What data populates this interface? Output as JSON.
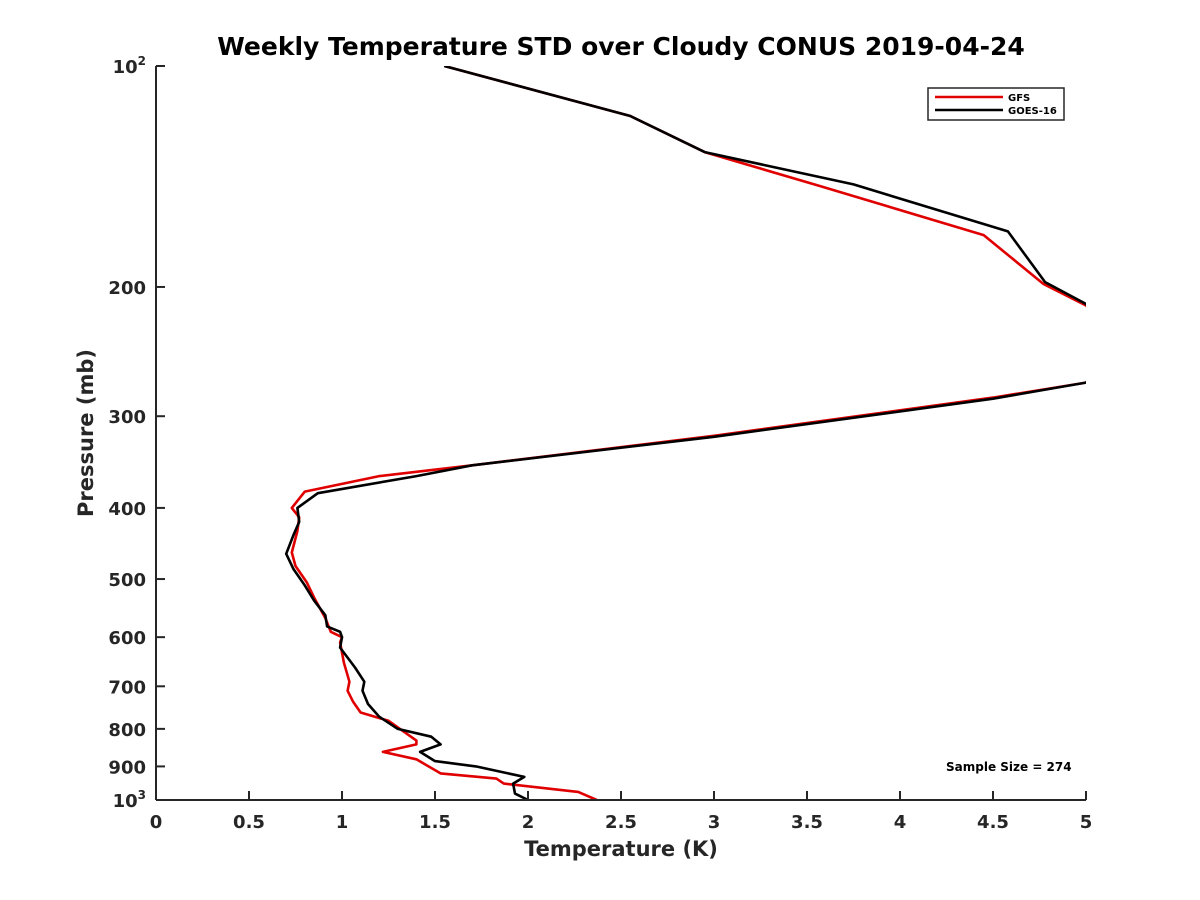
{
  "chart_data": {
    "type": "line",
    "title": "Weekly Temperature STD over Cloudy CONUS 2019-04-24",
    "xlabel": "Temperature (K)",
    "ylabel": "Pressure (mb)",
    "xlim": [
      0,
      5
    ],
    "ylim": [
      100,
      1000
    ],
    "y_scale": "log",
    "y_reversed": true,
    "grid": false,
    "legend_position": "top-right",
    "x_ticks": [
      {
        "value": 0,
        "label": "0"
      },
      {
        "value": 0.5,
        "label": "0.5"
      },
      {
        "value": 1,
        "label": "1"
      },
      {
        "value": 1.5,
        "label": "1.5"
      },
      {
        "value": 2,
        "label": "2"
      },
      {
        "value": 2.5,
        "label": "2.5"
      },
      {
        "value": 3,
        "label": "3"
      },
      {
        "value": 3.5,
        "label": "3.5"
      },
      {
        "value": 4,
        "label": "4"
      },
      {
        "value": 4.5,
        "label": "4.5"
      },
      {
        "value": 5,
        "label": "5"
      }
    ],
    "y_ticks": [
      {
        "value": 100,
        "base": "10",
        "exp": "2"
      },
      {
        "value": 200,
        "base": "200",
        "exp": ""
      },
      {
        "value": 300,
        "base": "300",
        "exp": ""
      },
      {
        "value": 400,
        "base": "400",
        "exp": ""
      },
      {
        "value": 500,
        "base": "500",
        "exp": ""
      },
      {
        "value": 600,
        "base": "600",
        "exp": ""
      },
      {
        "value": 700,
        "base": "700",
        "exp": ""
      },
      {
        "value": 800,
        "base": "800",
        "exp": ""
      },
      {
        "value": 900,
        "base": "900",
        "exp": ""
      },
      {
        "value": 1000,
        "base": "10",
        "exp": "3"
      }
    ],
    "annotation": "Sample Size = 274",
    "series": [
      {
        "name": "GFS",
        "color": "#e00000",
        "points": [
          [
            1.55,
            100
          ],
          [
            2.55,
            117
          ],
          [
            2.95,
            131
          ],
          [
            3.58,
            146
          ],
          [
            4.45,
            170
          ],
          [
            4.77,
            198
          ],
          [
            5.0,
            212
          ],
          [
            5.2,
            240
          ],
          [
            5.0,
            270
          ],
          [
            4.5,
            283
          ],
          [
            3.0,
            319
          ],
          [
            1.7,
            350
          ],
          [
            1.2,
            362
          ],
          [
            0.8,
            380
          ],
          [
            0.73,
            400
          ],
          [
            0.77,
            412
          ],
          [
            0.76,
            430
          ],
          [
            0.73,
            460
          ],
          [
            0.75,
            480
          ],
          [
            0.81,
            505
          ],
          [
            0.85,
            530
          ],
          [
            0.91,
            565
          ],
          [
            0.94,
            590
          ],
          [
            1.0,
            600
          ],
          [
            0.99,
            610
          ],
          [
            1.01,
            650
          ],
          [
            1.04,
            690
          ],
          [
            1.03,
            710
          ],
          [
            1.06,
            735
          ],
          [
            1.1,
            760
          ],
          [
            1.25,
            780
          ],
          [
            1.4,
            830
          ],
          [
            1.4,
            840
          ],
          [
            1.22,
            860
          ],
          [
            1.4,
            880
          ],
          [
            1.53,
            920
          ],
          [
            1.83,
            935
          ],
          [
            1.87,
            950
          ],
          [
            2.27,
            975
          ],
          [
            2.37,
            1000
          ]
        ]
      },
      {
        "name": "GOES-16",
        "color": "#000000",
        "points": [
          [
            1.55,
            100
          ],
          [
            2.55,
            117
          ],
          [
            2.95,
            131
          ],
          [
            3.75,
            145
          ],
          [
            4.58,
            168
          ],
          [
            4.78,
            197
          ],
          [
            5.0,
            211
          ],
          [
            5.2,
            240
          ],
          [
            5.0,
            270
          ],
          [
            4.5,
            284
          ],
          [
            3.0,
            320
          ],
          [
            1.7,
            350
          ],
          [
            1.4,
            362
          ],
          [
            0.87,
            382
          ],
          [
            0.76,
            400
          ],
          [
            0.77,
            418
          ],
          [
            0.74,
            435
          ],
          [
            0.7,
            462
          ],
          [
            0.74,
            485
          ],
          [
            0.8,
            510
          ],
          [
            0.85,
            535
          ],
          [
            0.91,
            560
          ],
          [
            0.92,
            580
          ],
          [
            0.99,
            590
          ],
          [
            1.0,
            600
          ],
          [
            0.99,
            620
          ],
          [
            1.07,
            660
          ],
          [
            1.12,
            690
          ],
          [
            1.11,
            710
          ],
          [
            1.14,
            740
          ],
          [
            1.2,
            770
          ],
          [
            1.3,
            800
          ],
          [
            1.48,
            820
          ],
          [
            1.53,
            840
          ],
          [
            1.42,
            860
          ],
          [
            1.5,
            885
          ],
          [
            1.72,
            900
          ],
          [
            1.98,
            930
          ],
          [
            1.92,
            950
          ],
          [
            1.93,
            980
          ],
          [
            2.0,
            1000
          ]
        ]
      }
    ]
  }
}
